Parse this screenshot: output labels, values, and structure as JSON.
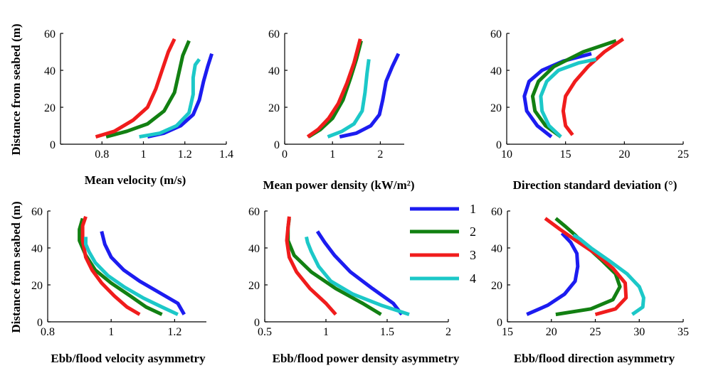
{
  "series_names": [
    "1",
    "2",
    "3",
    "4"
  ],
  "colors": [
    "#1c1cf0",
    "#128012",
    "#f01c1c",
    "#1cc8c8"
  ],
  "ylabel": "Distance from seabed (m)",
  "chart_data": [
    {
      "type": "line",
      "xlabel": "Mean velocity (m/s)",
      "xlim": [
        0.6,
        1.4
      ],
      "xticks": [
        0.8,
        1,
        1.2,
        1.4
      ],
      "xtick_labels": [
        "0.8",
        "1",
        "1.2",
        "1.4"
      ],
      "ylim": [
        0,
        60
      ],
      "yticks": [
        0,
        20,
        40,
        60
      ],
      "ytick_labels": [
        "0",
        "20",
        "40",
        "60"
      ],
      "series": [
        {
          "points": [
            [
              1.02,
              4
            ],
            [
              1.1,
              6
            ],
            [
              1.18,
              10
            ],
            [
              1.24,
              16
            ],
            [
              1.27,
              24
            ],
            [
              1.29,
              34
            ],
            [
              1.31,
              42
            ],
            [
              1.33,
              49
            ]
          ]
        },
        {
          "points": [
            [
              0.82,
              4
            ],
            [
              0.92,
              7
            ],
            [
              1.02,
              11
            ],
            [
              1.1,
              18
            ],
            [
              1.15,
              28
            ],
            [
              1.17,
              38
            ],
            [
              1.19,
              48
            ],
            [
              1.22,
              56
            ]
          ]
        },
        {
          "points": [
            [
              0.77,
              4
            ],
            [
              0.86,
              7
            ],
            [
              0.95,
              13
            ],
            [
              1.02,
              20
            ],
            [
              1.06,
              30
            ],
            [
              1.09,
              40
            ],
            [
              1.12,
              50
            ],
            [
              1.15,
              57
            ]
          ]
        },
        {
          "points": [
            [
              0.98,
              4
            ],
            [
              1.08,
              6
            ],
            [
              1.16,
              10
            ],
            [
              1.22,
              17
            ],
            [
              1.24,
              27
            ],
            [
              1.24,
              36
            ],
            [
              1.25,
              43
            ],
            [
              1.27,
              46
            ]
          ]
        }
      ]
    },
    {
      "type": "line",
      "xlabel": "Mean power density (kW/m²)",
      "xlim": [
        0,
        2.5
      ],
      "xticks": [
        0,
        1,
        2
      ],
      "xtick_labels": [
        "0",
        "1",
        "2"
      ],
      "ylim": [
        0,
        60
      ],
      "yticks": [
        0,
        20,
        40,
        60
      ],
      "ytick_labels": [
        "0",
        "20",
        "40",
        "60"
      ],
      "series": [
        {
          "points": [
            [
              1.15,
              4
            ],
            [
              1.5,
              6
            ],
            [
              1.8,
              10
            ],
            [
              1.98,
              16
            ],
            [
              2.05,
              24
            ],
            [
              2.12,
              34
            ],
            [
              2.25,
              42
            ],
            [
              2.38,
              49
            ]
          ]
        },
        {
          "points": [
            [
              0.5,
              4
            ],
            [
              0.75,
              8
            ],
            [
              1.0,
              14
            ],
            [
              1.22,
              24
            ],
            [
              1.38,
              36
            ],
            [
              1.5,
              46
            ],
            [
              1.6,
              56
            ]
          ]
        },
        {
          "points": [
            [
              0.48,
              4
            ],
            [
              0.7,
              8
            ],
            [
              0.92,
              14
            ],
            [
              1.12,
              22
            ],
            [
              1.3,
              33
            ],
            [
              1.45,
              44
            ],
            [
              1.58,
              57
            ]
          ]
        },
        {
          "points": [
            [
              0.9,
              4
            ],
            [
              1.2,
              7
            ],
            [
              1.45,
              11
            ],
            [
              1.62,
              18
            ],
            [
              1.68,
              28
            ],
            [
              1.72,
              38
            ],
            [
              1.76,
              46
            ]
          ]
        }
      ]
    },
    {
      "type": "line",
      "xlabel": "Direction standard deviation (°)",
      "xlim": [
        10,
        25
      ],
      "xticks": [
        10,
        15,
        20,
        25
      ],
      "xtick_labels": [
        "10",
        "15",
        "20",
        "25"
      ],
      "ylim": [
        0,
        60
      ],
      "yticks": [
        0,
        20,
        40,
        60
      ],
      "ytick_labels": [
        "0",
        "20",
        "40",
        "60"
      ],
      "series": [
        {
          "points": [
            [
              13.8,
              4
            ],
            [
              12.6,
              10
            ],
            [
              11.7,
              18
            ],
            [
              11.5,
              26
            ],
            [
              11.9,
              34
            ],
            [
              13.0,
              40
            ],
            [
              14.8,
              45
            ],
            [
              17.2,
              49
            ]
          ]
        },
        {
          "points": [
            [
              14.6,
              4
            ],
            [
              13.3,
              10
            ],
            [
              12.4,
              18
            ],
            [
              12.2,
              26
            ],
            [
              12.7,
              34
            ],
            [
              14.0,
              42
            ],
            [
              16.5,
              50
            ],
            [
              19.3,
              56
            ]
          ]
        },
        {
          "points": [
            [
              15.6,
              5
            ],
            [
              15.0,
              10
            ],
            [
              14.8,
              18
            ],
            [
              15.0,
              26
            ],
            [
              15.8,
              34
            ],
            [
              16.9,
              42
            ],
            [
              18.3,
              50
            ],
            [
              19.9,
              57
            ]
          ]
        },
        {
          "points": [
            [
              14.6,
              4
            ],
            [
              13.6,
              10
            ],
            [
              13.0,
              18
            ],
            [
              12.9,
              26
            ],
            [
              13.4,
              34
            ],
            [
              14.4,
              40
            ],
            [
              16.1,
              44
            ],
            [
              17.6,
              46
            ]
          ]
        }
      ]
    },
    {
      "type": "line",
      "xlabel": "Ebb/flood velocity asymmetry",
      "xlim": [
        0.8,
        1.3
      ],
      "xticks": [
        0.8,
        1,
        1.2
      ],
      "xtick_labels": [
        "0.8",
        "1",
        "1.2"
      ],
      "ylim": [
        0,
        60
      ],
      "yticks": [
        0,
        20,
        40,
        60
      ],
      "ytick_labels": [
        "0",
        "20",
        "40",
        "60"
      ],
      "series": [
        {
          "points": [
            [
              1.23,
              4
            ],
            [
              1.21,
              10
            ],
            [
              1.15,
              16
            ],
            [
              1.09,
              22
            ],
            [
              1.04,
              28
            ],
            [
              1.0,
              35
            ],
            [
              0.98,
              42
            ],
            [
              0.97,
              49
            ]
          ]
        },
        {
          "points": [
            [
              1.16,
              4
            ],
            [
              1.11,
              8
            ],
            [
              1.06,
              14
            ],
            [
              1.0,
              21
            ],
            [
              0.95,
              28
            ],
            [
              0.92,
              36
            ],
            [
              0.9,
              44
            ],
            [
              0.9,
              50
            ],
            [
              0.91,
              56
            ]
          ]
        },
        {
          "points": [
            [
              1.09,
              4
            ],
            [
              1.05,
              8
            ],
            [
              1.01,
              14
            ],
            [
              0.97,
              21
            ],
            [
              0.94,
              28
            ],
            [
              0.92,
              35
            ],
            [
              0.91,
              44
            ],
            [
              0.91,
              52
            ],
            [
              0.92,
              57
            ]
          ]
        },
        {
          "points": [
            [
              1.21,
              4
            ],
            [
              1.16,
              8
            ],
            [
              1.1,
              13
            ],
            [
              1.04,
              19
            ],
            [
              0.99,
              25
            ],
            [
              0.95,
              32
            ],
            [
              0.93,
              38
            ],
            [
              0.92,
              42
            ],
            [
              0.92,
              46
            ]
          ]
        }
      ]
    },
    {
      "type": "line",
      "xlabel": "Ebb/flood power density asymmetry",
      "xlim": [
        0.5,
        2
      ],
      "xticks": [
        0.5,
        1,
        1.5,
        2
      ],
      "xtick_labels": [
        "0.5",
        "1",
        "1.5",
        "2"
      ],
      "ylim": [
        0,
        60
      ],
      "yticks": [
        0,
        20,
        40,
        60
      ],
      "ytick_labels": [
        "0",
        "20",
        "40",
        "60"
      ],
      "series": [
        {
          "points": [
            [
              1.62,
              4
            ],
            [
              1.55,
              10
            ],
            [
              1.38,
              18
            ],
            [
              1.2,
              27
            ],
            [
              1.07,
              36
            ],
            [
              0.99,
              43
            ],
            [
              0.93,
              49
            ]
          ]
        },
        {
          "points": [
            [
              1.45,
              4
            ],
            [
              1.3,
              10
            ],
            [
              1.08,
              18
            ],
            [
              0.88,
              27
            ],
            [
              0.74,
              36
            ],
            [
              0.69,
              44
            ],
            [
              0.69,
              51
            ],
            [
              0.7,
              56
            ]
          ]
        },
        {
          "points": [
            [
              1.08,
              4
            ],
            [
              1.0,
              10
            ],
            [
              0.87,
              18
            ],
            [
              0.76,
              27
            ],
            [
              0.7,
              35
            ],
            [
              0.68,
              44
            ],
            [
              0.69,
              51
            ],
            [
              0.7,
              57
            ]
          ]
        },
        {
          "points": [
            [
              1.68,
              4
            ],
            [
              1.45,
              9
            ],
            [
              1.22,
              15
            ],
            [
              1.04,
              22
            ],
            [
              0.94,
              30
            ],
            [
              0.88,
              38
            ],
            [
              0.85,
              43
            ],
            [
              0.84,
              46
            ]
          ]
        }
      ]
    },
    {
      "type": "line",
      "xlabel": "Ebb/flood direction asymmetry",
      "xlim": [
        15,
        35
      ],
      "xticks": [
        15,
        20,
        25,
        30,
        35
      ],
      "xtick_labels": [
        "15",
        "20",
        "25",
        "30",
        "35"
      ],
      "ylim": [
        0,
        60
      ],
      "yticks": [
        0,
        20,
        40,
        60
      ],
      "ytick_labels": [
        "0",
        "20",
        "40",
        "60"
      ],
      "series": [
        {
          "points": [
            [
              17.2,
              4
            ],
            [
              19.6,
              9
            ],
            [
              21.5,
              15
            ],
            [
              22.7,
              22
            ],
            [
              23.0,
              30
            ],
            [
              22.9,
              37
            ],
            [
              22.2,
              43
            ],
            [
              21.2,
              48
            ]
          ]
        },
        {
          "points": [
            [
              20.5,
              4
            ],
            [
              24.5,
              7
            ],
            [
              27.0,
              12
            ],
            [
              27.8,
              19
            ],
            [
              27.3,
              26
            ],
            [
              25.8,
              33
            ],
            [
              24.2,
              40
            ],
            [
              22.7,
              47
            ],
            [
              21.5,
              52
            ],
            [
              20.5,
              56
            ]
          ]
        },
        {
          "points": [
            [
              25.0,
              4
            ],
            [
              27.3,
              7
            ],
            [
              28.5,
              13
            ],
            [
              28.4,
              21
            ],
            [
              27.0,
              29
            ],
            [
              25.0,
              37
            ],
            [
              22.8,
              44
            ],
            [
              21.0,
              50
            ],
            [
              19.3,
              56
            ]
          ]
        },
        {
          "points": [
            [
              29.2,
              4
            ],
            [
              30.4,
              8
            ],
            [
              30.5,
              13
            ],
            [
              30.0,
              19
            ],
            [
              28.6,
              26
            ],
            [
              26.6,
              33
            ],
            [
              24.5,
              40
            ],
            [
              23.2,
              45
            ],
            [
              22.5,
              47
            ]
          ]
        }
      ]
    }
  ]
}
